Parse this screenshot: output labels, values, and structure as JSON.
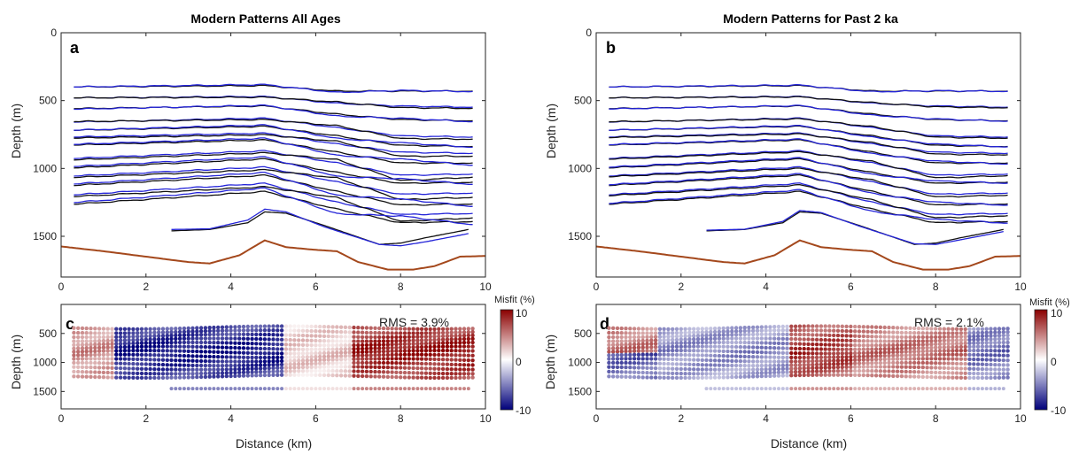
{
  "colors": {
    "layer_line_a": "#111111",
    "layer_line_b": "#2424d8",
    "basement_line": "#a4481c",
    "misfit_high": "#8b0000",
    "misfit_mid": "#ffffff",
    "misfit_low": "#00007a"
  },
  "chart_data": [
    {
      "type": "line",
      "panel": "a",
      "title": "Modern Patterns All Ages",
      "xlabel": "",
      "ylabel": "Depth (m)",
      "xlim": [
        0,
        10
      ],
      "ylim": [
        1800,
        0
      ],
      "y_reversed": true,
      "xticks": [
        "0",
        "2",
        "4",
        "6",
        "8",
        "10"
      ],
      "yticks": [
        "0",
        "500",
        "1000",
        "1500"
      ],
      "observed_color": "#111111",
      "modeled_color": "#2424d8",
      "layer_x_range": [
        0.3,
        9.7
      ],
      "layer_x_knots": [
        0,
        4.8,
        6.5,
        8.0,
        10
      ],
      "layer_depths_at_knots": [
        [
          400,
          390,
          430,
          430,
          430
        ],
        [
          480,
          470,
          520,
          540,
          550
        ],
        [
          560,
          540,
          600,
          640,
          650
        ],
        [
          660,
          630,
          700,
          760,
          770
        ],
        [
          720,
          690,
          760,
          830,
          840
        ],
        [
          770,
          740,
          820,
          880,
          890
        ],
        [
          830,
          790,
          880,
          960,
          960
        ],
        [
          930,
          870,
          960,
          1050,
          1040
        ],
        [
          1000,
          930,
          1030,
          1110,
          1100
        ],
        [
          1060,
          990,
          1100,
          1190,
          1180
        ],
        [
          1130,
          1050,
          1170,
          1270,
          1260
        ],
        [
          1200,
          1110,
          1250,
          1340,
          1330
        ],
        [
          1270,
          1170,
          1300,
          1400,
          1390
        ]
      ],
      "modeled_offsets": [
        [
          0,
          -8,
          10,
          -5,
          5
        ],
        [
          0,
          5,
          -10,
          12,
          8
        ],
        [
          5,
          -5,
          15,
          -10,
          10
        ],
        [
          -5,
          10,
          -15,
          20,
          15
        ],
        [
          0,
          -10,
          20,
          -20,
          10
        ],
        [
          8,
          12,
          -20,
          30,
          20
        ],
        [
          -5,
          -12,
          25,
          -30,
          25
        ],
        [
          10,
          15,
          -25,
          40,
          20
        ],
        [
          -10,
          -15,
          30,
          -35,
          25
        ],
        [
          10,
          20,
          -30,
          40,
          30
        ],
        [
          -10,
          -20,
          30,
          -45,
          30
        ],
        [
          12,
          25,
          -35,
          50,
          30
        ],
        [
          -12,
          -25,
          35,
          -50,
          35
        ]
      ],
      "deep_layer": {
        "x": [
          2.6,
          3.5,
          4.4,
          4.8,
          5.3,
          6.2,
          7.5,
          8.0,
          8.6,
          9.6
        ],
        "observed": [
          1460,
          1450,
          1400,
          1320,
          1330,
          1420,
          1560,
          1550,
          1510,
          1450
        ],
        "modeled": [
          1450,
          1445,
          1380,
          1300,
          1320,
          1430,
          1560,
          1570,
          1540,
          1480
        ]
      },
      "basement": {
        "x": [
          0,
          1,
          2,
          3,
          3.5,
          4.2,
          4.8,
          5.3,
          6.0,
          6.5,
          7.0,
          7.7,
          8.3,
          8.8,
          9.4,
          10
        ],
        "depth": [
          1575,
          1610,
          1650,
          1690,
          1700,
          1640,
          1530,
          1580,
          1600,
          1610,
          1690,
          1745,
          1745,
          1720,
          1650,
          1645
        ]
      }
    },
    {
      "type": "line",
      "panel": "b",
      "title": "Modern Patterns for Past 2 ka",
      "xlabel": "",
      "ylabel": "Depth (m)",
      "xlim": [
        0,
        10
      ],
      "ylim": [
        1800,
        0
      ],
      "y_reversed": true,
      "xticks": [
        "0",
        "2",
        "4",
        "6",
        "8",
        "10"
      ],
      "yticks": [
        "0",
        "500",
        "1000",
        "1500"
      ],
      "observed_color": "#111111",
      "modeled_color": "#2424d8",
      "layer_x_range": [
        0.3,
        9.7
      ],
      "layer_x_knots": [
        0,
        4.8,
        6.5,
        8.0,
        10
      ],
      "layer_depths_at_knots": [
        [
          400,
          390,
          430,
          430,
          430
        ],
        [
          480,
          470,
          520,
          540,
          550
        ],
        [
          560,
          540,
          600,
          640,
          650
        ],
        [
          660,
          630,
          700,
          760,
          770
        ],
        [
          720,
          690,
          760,
          830,
          840
        ],
        [
          770,
          740,
          820,
          880,
          890
        ],
        [
          830,
          790,
          880,
          960,
          960
        ],
        [
          930,
          870,
          960,
          1050,
          1040
        ],
        [
          1000,
          930,
          1030,
          1110,
          1100
        ],
        [
          1060,
          990,
          1100,
          1190,
          1180
        ],
        [
          1130,
          1050,
          1170,
          1270,
          1260
        ],
        [
          1200,
          1110,
          1250,
          1340,
          1330
        ],
        [
          1270,
          1170,
          1300,
          1400,
          1390
        ]
      ],
      "modeled_offsets": [
        [
          0,
          -4,
          5,
          -3,
          3
        ],
        [
          0,
          3,
          -5,
          6,
          4
        ],
        [
          3,
          -3,
          8,
          -5,
          5
        ],
        [
          -3,
          5,
          -8,
          10,
          8
        ],
        [
          0,
          -5,
          10,
          -10,
          5
        ],
        [
          4,
          6,
          -10,
          15,
          10
        ],
        [
          -3,
          -6,
          12,
          -15,
          12
        ],
        [
          5,
          8,
          -12,
          20,
          10
        ],
        [
          -5,
          -8,
          15,
          -18,
          12
        ],
        [
          5,
          10,
          -15,
          20,
          15
        ],
        [
          -5,
          -10,
          15,
          -22,
          15
        ],
        [
          6,
          12,
          -18,
          25,
          15
        ],
        [
          -6,
          -12,
          18,
          -25,
          18
        ]
      ],
      "deep_layer": {
        "x": [
          2.6,
          3.5,
          4.4,
          4.8,
          5.3,
          6.2,
          7.5,
          8.0,
          8.6,
          9.6
        ],
        "observed": [
          1460,
          1450,
          1400,
          1320,
          1330,
          1420,
          1560,
          1550,
          1510,
          1450
        ],
        "modeled": [
          1455,
          1448,
          1390,
          1310,
          1325,
          1425,
          1555,
          1560,
          1525,
          1465
        ]
      },
      "basement": {
        "x": [
          0,
          1,
          2,
          3,
          3.5,
          4.2,
          4.8,
          5.3,
          6.0,
          6.5,
          7.0,
          7.7,
          8.3,
          8.8,
          9.4,
          10
        ],
        "depth": [
          1575,
          1610,
          1650,
          1690,
          1700,
          1640,
          1530,
          1580,
          1600,
          1610,
          1690,
          1745,
          1745,
          1720,
          1650,
          1645
        ]
      }
    },
    {
      "type": "scatter",
      "panel": "c",
      "title": "",
      "xlabel": "Distance (km)",
      "ylabel": "Depth (m)",
      "xlim": [
        0,
        10
      ],
      "ylim": [
        1800,
        0
      ],
      "y_reversed": true,
      "xticks": [
        "0",
        "2",
        "4",
        "6",
        "8",
        "10"
      ],
      "yticks": [
        "500",
        "1000",
        "1500"
      ],
      "annotation": "RMS = 3.9%",
      "colorbar": {
        "label": "Misfit (%)",
        "ticks": [
          "10",
          "0",
          "-10"
        ],
        "range": [
          -10,
          10
        ]
      },
      "point_grid": {
        "x_range": [
          0.3,
          9.7
        ],
        "x_step": 0.1,
        "depth_rows": [
          400,
          470,
          540,
          610,
          680,
          750,
          820,
          890,
          960,
          1030,
          1100,
          1170,
          1240
        ]
      },
      "deep_row": {
        "x_range": [
          2.6,
          9.6
        ],
        "depth": 1450
      },
      "misfit_pattern": [
        {
          "x": [
            0.3,
            1.2
          ],
          "misfit": 4
        },
        {
          "x": [
            1.2,
            5.2
          ],
          "misfit": -8
        },
        {
          "x": [
            5.2,
            6.8
          ],
          "misfit": 2
        },
        {
          "x": [
            6.8,
            9.7
          ],
          "misfit": 8
        }
      ]
    },
    {
      "type": "scatter",
      "panel": "d",
      "title": "",
      "xlabel": "Distance (km)",
      "ylabel": "Depth (m)",
      "xlim": [
        0,
        10
      ],
      "ylim": [
        1800,
        0
      ],
      "y_reversed": true,
      "xticks": [
        "0",
        "2",
        "4",
        "6",
        "8",
        "10"
      ],
      "yticks": [
        "500",
        "1000",
        "1500"
      ],
      "annotation": "RMS = 2.1%",
      "colorbar": {
        "label": "Misfit (%)",
        "ticks": [
          "10",
          "0",
          "-10"
        ],
        "range": [
          -10,
          10
        ]
      },
      "point_grid": {
        "x_range": [
          0.3,
          9.7
        ],
        "x_step": 0.1,
        "depth_rows": [
          400,
          470,
          540,
          610,
          680,
          750,
          820,
          890,
          960,
          1030,
          1100,
          1170,
          1240
        ]
      },
      "deep_row": {
        "x_range": [
          2.6,
          9.6
        ],
        "depth": 1450
      },
      "misfit_pattern": [
        {
          "x": [
            0.3,
            1.5
          ],
          "misfit": 5,
          "deep_misfit": -6
        },
        {
          "x": [
            1.5,
            4.5
          ],
          "misfit": -4
        },
        {
          "x": [
            4.5,
            6.0
          ],
          "misfit": 7
        },
        {
          "x": [
            6.0,
            8.7
          ],
          "misfit": 5
        },
        {
          "x": [
            8.7,
            9.7
          ],
          "misfit": -5
        }
      ]
    }
  ]
}
